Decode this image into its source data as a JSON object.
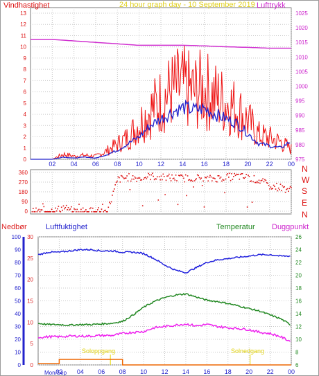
{
  "top_panel": {
    "left_title": "Vindhastighet",
    "center_title": "24 hour graph day - 10 September 2019",
    "right_title": "Lufttrykk"
  },
  "mid_panel": {
    "compass_letters": [
      "N",
      "W",
      "S",
      "E",
      "N"
    ]
  },
  "bottom_panel": {
    "label_rain": "Nedbør",
    "label_humidity": "Luftfuktighet",
    "label_temperature": "Temperatur",
    "label_dewpoint": "Duggpunkt",
    "sunrise_label": "Soloppgang",
    "sunset_label": "Solnedgang",
    "date_label": "Mon/Sep"
  },
  "colors": {
    "wind": "#ee1111",
    "gust_avg": "#2222cc",
    "pressure": "#d030d0",
    "direction": "#dd1111",
    "humidity": "#2222dd",
    "temperature": "#228822",
    "dewpoint": "#ee22ee",
    "rain": "#ee6600",
    "sun": "#e8d800",
    "grid": "#c8c8c8"
  },
  "chart_data": [
    {
      "type": "line",
      "title": "24 hour graph day - 10 September 2019",
      "x_ticks": [
        "02",
        "04",
        "06",
        "08",
        "10",
        "12",
        "14",
        "16",
        "18",
        "20",
        "22",
        "00"
      ],
      "y_left": {
        "label": "Vindhastighet",
        "ticks": [
          0,
          1,
          2,
          3,
          4,
          5,
          6,
          7,
          8,
          9,
          10,
          11,
          12,
          13
        ],
        "range": [
          0,
          13
        ]
      },
      "y_right": {
        "label": "Lufttrykk",
        "ticks": [
          975,
          980,
          985,
          990,
          995,
          1000,
          1005,
          1010,
          1015,
          1020,
          1025
        ],
        "range": [
          975,
          1025
        ]
      },
      "series": [
        {
          "name": "Vindhastighet",
          "axis": "left",
          "x": [
            0,
            1,
            2,
            3,
            4,
            5,
            6,
            7,
            8,
            9,
            10,
            11,
            12,
            13,
            14,
            15,
            16,
            17,
            18,
            19,
            20,
            21,
            22,
            23,
            24
          ],
          "values": [
            0,
            0,
            0,
            0.5,
            0.3,
            0.4,
            0.3,
            0.8,
            1.5,
            2.2,
            3.5,
            4.8,
            5.8,
            6.8,
            7.1,
            6.6,
            6.9,
            6.2,
            5.6,
            5.0,
            3.8,
            2.4,
            2.1,
            1.7,
            1.0
          ]
        },
        {
          "name": "",
          "axis": "left",
          "x": [
            0,
            1,
            2,
            3,
            4,
            5,
            6,
            7,
            8,
            9,
            10,
            11,
            12,
            13,
            14,
            15,
            16,
            17,
            18,
            19,
            20,
            21,
            22,
            23,
            24
          ],
          "values": [
            0,
            0,
            0,
            0.2,
            0.1,
            0.2,
            0.1,
            0.4,
            0.8,
            1.4,
            2.0,
            3.0,
            3.6,
            4.2,
            4.6,
            4.4,
            4.5,
            4.0,
            3.6,
            3.2,
            2.3,
            1.4,
            1.2,
            1.0,
            1.6
          ]
        },
        {
          "name": "Lufttrykk",
          "axis": "right",
          "x": [
            0,
            2,
            4,
            6,
            8,
            10,
            12,
            14,
            16,
            18,
            20,
            22,
            24
          ],
          "values": [
            1016,
            1016,
            1015.5,
            1015,
            1014.5,
            1014,
            1014,
            1014,
            1013.8,
            1013.5,
            1013.3,
            1013,
            1013
          ]
        }
      ]
    },
    {
      "type": "scatter",
      "title": "",
      "x_ticks": [
        "02",
        "04",
        "06",
        "08",
        "10",
        "12",
        "14",
        "16",
        "18",
        "20",
        "22",
        "00"
      ],
      "y_ticks": [
        0,
        90,
        180,
        270,
        360
      ],
      "ylim": [
        0,
        360
      ],
      "series": [
        {
          "name": "",
          "x": [
            0.5,
            1,
            1.5,
            2,
            3,
            4,
            5,
            6,
            7,
            8,
            9,
            10,
            11,
            12,
            13,
            14,
            15,
            16,
            17,
            18,
            19,
            20,
            21,
            22,
            23,
            24
          ],
          "values": [
            0,
            0,
            0,
            0,
            40,
            0,
            0,
            10,
            0,
            300,
            320,
            310,
            330,
            320,
            315,
            310,
            320,
            300,
            310,
            320,
            330,
            315,
            290,
            240,
            225,
            200
          ]
        }
      ]
    },
    {
      "type": "line",
      "title": "",
      "x_ticks": [
        "02",
        "04",
        "06",
        "08",
        "10",
        "12",
        "14",
        "16",
        "18",
        "20",
        "22",
        "00"
      ],
      "y_humidity": {
        "label": "Luftfuktighet",
        "ticks": [
          0,
          10,
          20,
          30,
          40,
          50,
          60,
          70,
          80,
          90,
          100
        ],
        "range": [
          0,
          100
        ]
      },
      "y_rain": {
        "label": "Nedbør",
        "ticks": [
          0,
          5,
          10,
          15,
          20,
          25,
          30
        ],
        "range": [
          0,
          30
        ]
      },
      "y_temp": {
        "label": "Temperatur",
        "ticks": [
          6,
          8,
          10,
          12,
          14,
          16,
          18,
          20,
          22,
          24,
          26
        ],
        "range": [
          6,
          26
        ]
      },
      "series": [
        {
          "name": "Luftfuktighet",
          "x": [
            0,
            1,
            2,
            3,
            4,
            5,
            6,
            7,
            8,
            9,
            10,
            11,
            12,
            13,
            14,
            15,
            16,
            17,
            18,
            19,
            20,
            21,
            22,
            23,
            24
          ],
          "values": [
            86,
            88,
            88,
            89,
            90,
            90,
            89,
            89,
            88,
            88,
            87,
            83,
            78,
            74,
            72,
            76,
            80,
            82,
            83,
            84,
            85,
            86,
            86,
            85,
            85
          ]
        },
        {
          "name": "Temperatur",
          "x": [
            0,
            1,
            2,
            3,
            4,
            5,
            6,
            7,
            8,
            9,
            10,
            11,
            12,
            13,
            14,
            15,
            16,
            17,
            18,
            19,
            20,
            21,
            22,
            23,
            24
          ],
          "values": [
            12.5,
            12.3,
            12.3,
            12.2,
            12.3,
            12.3,
            12.4,
            12.5,
            12.8,
            13.8,
            15.0,
            15.9,
            16.5,
            16.9,
            17.1,
            16.6,
            16.1,
            15.9,
            15.6,
            15.2,
            14.8,
            14.4,
            13.8,
            13.2,
            12.2
          ]
        },
        {
          "name": "Duggpunkt",
          "x": [
            0,
            1,
            2,
            3,
            4,
            5,
            6,
            7,
            8,
            9,
            10,
            11,
            12,
            13,
            14,
            15,
            16,
            17,
            18,
            19,
            20,
            21,
            22,
            23,
            24
          ],
          "values": [
            10.3,
            10.4,
            10.4,
            10.5,
            10.5,
            10.5,
            10.6,
            10.6,
            10.9,
            11.1,
            11.2,
            11.8,
            12.0,
            12.2,
            12.4,
            12.1,
            12.3,
            12.0,
            11.8,
            11.7,
            11.5,
            11.1,
            10.9,
            10.4,
            9.6
          ]
        },
        {
          "name": "Nedbør",
          "x": [
            0,
            1,
            2,
            3,
            4,
            5,
            6,
            7,
            8,
            9,
            10,
            11,
            12,
            13,
            14,
            15,
            16,
            17,
            18,
            19,
            20,
            21,
            22,
            23,
            24
          ],
          "values": [
            0.3,
            0.3,
            1.3,
            1.3,
            1.3,
            1.3,
            1.3,
            1.3,
            0,
            0,
            0,
            0,
            0,
            0,
            0,
            0,
            0,
            0,
            0,
            0,
            0,
            0,
            0,
            0,
            0
          ]
        }
      ]
    }
  ]
}
